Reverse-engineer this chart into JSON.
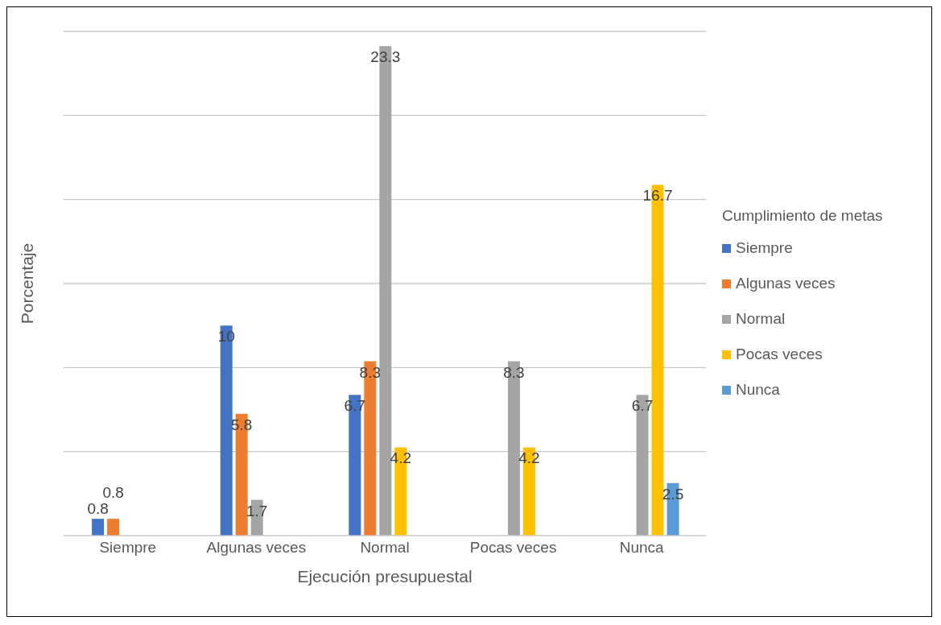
{
  "chart_data": {
    "type": "bar",
    "xlabel": "Ejecución presupuestal",
    "ylabel": "Porcentaje",
    "legend_title": "Cumplimiento de metas",
    "legend": "right",
    "grid": "y",
    "data_labels": true,
    "tick_labels": "x",
    "categories": [
      "Siempre",
      "Algunas veces",
      "Normal",
      "Pocas veces",
      "Nunca"
    ],
    "series": [
      {
        "name": "Siempre",
        "color": "#4472c4",
        "values": [
          0.8,
          10,
          6.7,
          null,
          null
        ]
      },
      {
        "name": "Algunas veces",
        "color": "#ed7d31",
        "values": [
          0.8,
          5.8,
          8.3,
          null,
          null
        ]
      },
      {
        "name": "Normal",
        "color": "#a5a5a5",
        "values": [
          null,
          1.7,
          23.3,
          8.3,
          6.7
        ]
      },
      {
        "name": "Pocas veces",
        "color": "#ffc000",
        "values": [
          null,
          null,
          4.2,
          4.2,
          16.7
        ]
      },
      {
        "name": "Nunca",
        "color": "#5b9bd5",
        "values": [
          null,
          null,
          null,
          null,
          2.5
        ]
      }
    ]
  }
}
